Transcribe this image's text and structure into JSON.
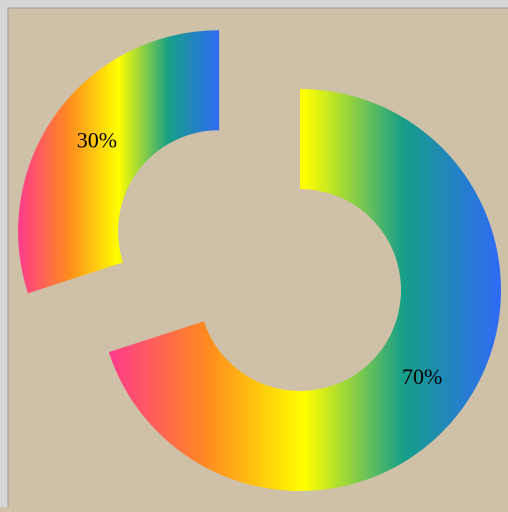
{
  "chart_data": {
    "type": "donut",
    "values": [
      30,
      70
    ],
    "value_labels": [
      "30%",
      "70%"
    ],
    "explode": [
      true,
      false
    ],
    "gradient": [
      "#ff3a8c",
      "#ff8a1f",
      "#ffff00",
      "#159f88",
      "#2f6af7"
    ]
  }
}
